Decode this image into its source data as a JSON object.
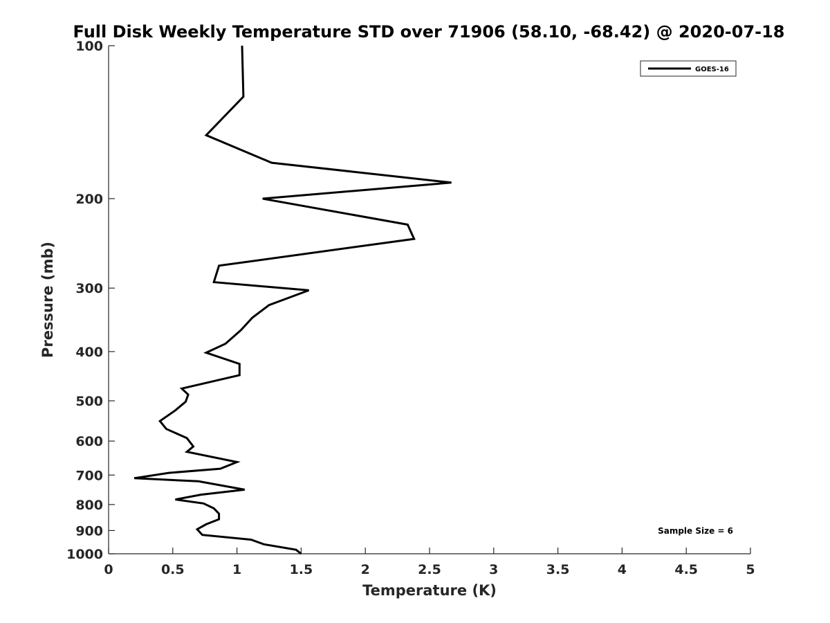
{
  "chart_data": {
    "type": "line",
    "title": "Full Disk Weekly Temperature STD over 71906 (58.10, -68.42) @ 2020-07-18",
    "xlabel": "Temperature (K)",
    "ylabel": "Pressure (mb)",
    "xlim": [
      0,
      5
    ],
    "ylim": [
      100,
      1000
    ],
    "y_scale": "log",
    "y_reversed": true,
    "x_ticks": [
      "0",
      "0.5",
      "1",
      "1.5",
      "2",
      "2.5",
      "3",
      "3.5",
      "4",
      "4.5",
      "5"
    ],
    "y_ticks": [
      "100",
      "200",
      "300",
      "400",
      "500",
      "600",
      "700",
      "800",
      "900",
      "1000"
    ],
    "grid": false,
    "legend_position": "top-right",
    "annotation": "Sample Size = 6",
    "colors": {
      "series": "#000000",
      "axes": "#262626"
    },
    "series": [
      {
        "name": "GOES-16",
        "points": [
          [
            1.04,
            100
          ],
          [
            1.05,
            126
          ],
          [
            0.76,
            150
          ],
          [
            1.27,
            170
          ],
          [
            2.67,
            186
          ],
          [
            1.2,
            200
          ],
          [
            2.33,
            225
          ],
          [
            2.38,
            240
          ],
          [
            0.86,
            271
          ],
          [
            0.82,
            292
          ],
          [
            1.56,
            303
          ],
          [
            1.25,
            324
          ],
          [
            1.12,
            343
          ],
          [
            1.03,
            363
          ],
          [
            0.91,
            386
          ],
          [
            0.76,
            402
          ],
          [
            1.02,
            423
          ],
          [
            1.02,
            445
          ],
          [
            0.57,
            473
          ],
          [
            0.62,
            486
          ],
          [
            0.6,
            502
          ],
          [
            0.52,
            522
          ],
          [
            0.4,
            548
          ],
          [
            0.45,
            568
          ],
          [
            0.61,
            592
          ],
          [
            0.66,
            615
          ],
          [
            0.61,
            630
          ],
          [
            1.0,
            660
          ],
          [
            0.87,
            680
          ],
          [
            0.47,
            693
          ],
          [
            0.2,
            710
          ],
          [
            0.7,
            720
          ],
          [
            1.06,
            748
          ],
          [
            0.72,
            765
          ],
          [
            0.52,
            782
          ],
          [
            0.74,
            796
          ],
          [
            0.82,
            814
          ],
          [
            0.86,
            834
          ],
          [
            0.86,
            855
          ],
          [
            0.76,
            875
          ],
          [
            0.69,
            895
          ],
          [
            0.73,
            918
          ],
          [
            1.11,
            938
          ],
          [
            1.21,
            958
          ],
          [
            1.46,
            982
          ],
          [
            1.5,
            1000
          ]
        ]
      }
    ]
  }
}
